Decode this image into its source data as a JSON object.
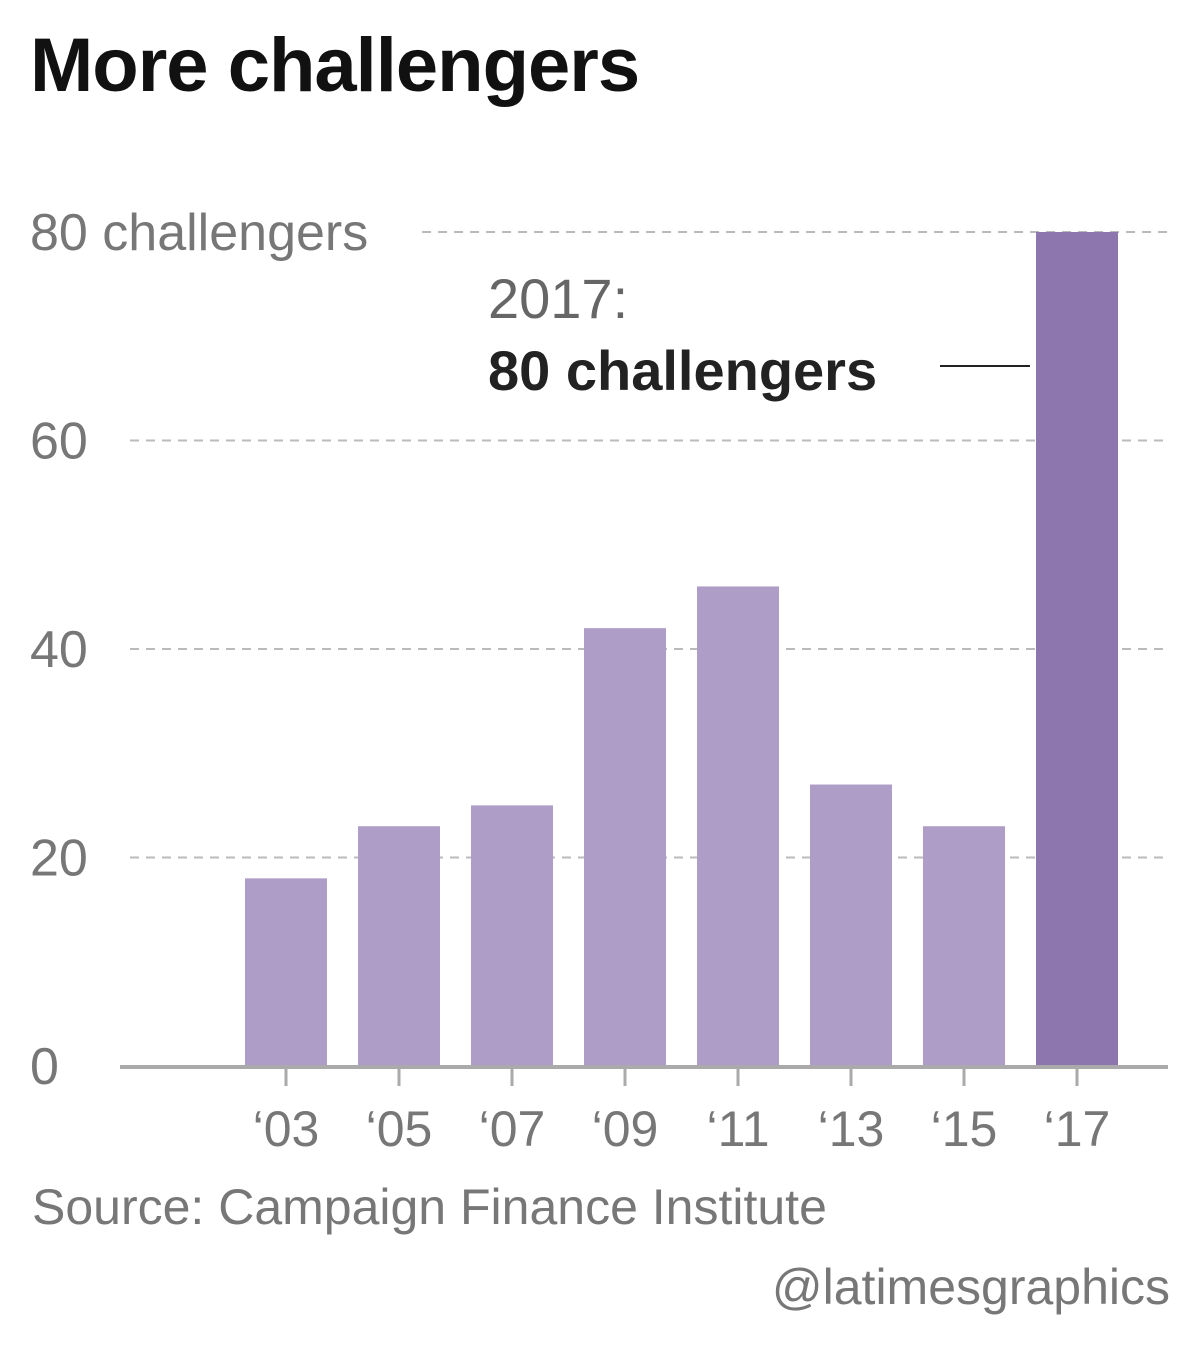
{
  "chart_data": {
    "type": "bar",
    "title": "More challengers",
    "categories": [
      "‘03",
      "‘05",
      "‘07",
      "‘09",
      "‘11",
      "‘13",
      "‘15",
      "‘17"
    ],
    "values": [
      18,
      23,
      25,
      42,
      46,
      27,
      23,
      80
    ],
    "y_ticks": [
      "0",
      "20",
      "40",
      "60",
      "80 challengers"
    ],
    "ylim": [
      0,
      80
    ],
    "grid": "dashed horizontal",
    "colors": {
      "bar": "#ae9dc6",
      "highlight": "#8d76ad",
      "grid": "#bbbbbb",
      "axis": "#aaaaaa"
    },
    "highlight_index": 7,
    "annotation": {
      "year": "2017:",
      "value": "80 challengers"
    }
  },
  "footer": {
    "source": "Source: Campaign Finance Institute",
    "credit": "@latimesgraphics"
  }
}
